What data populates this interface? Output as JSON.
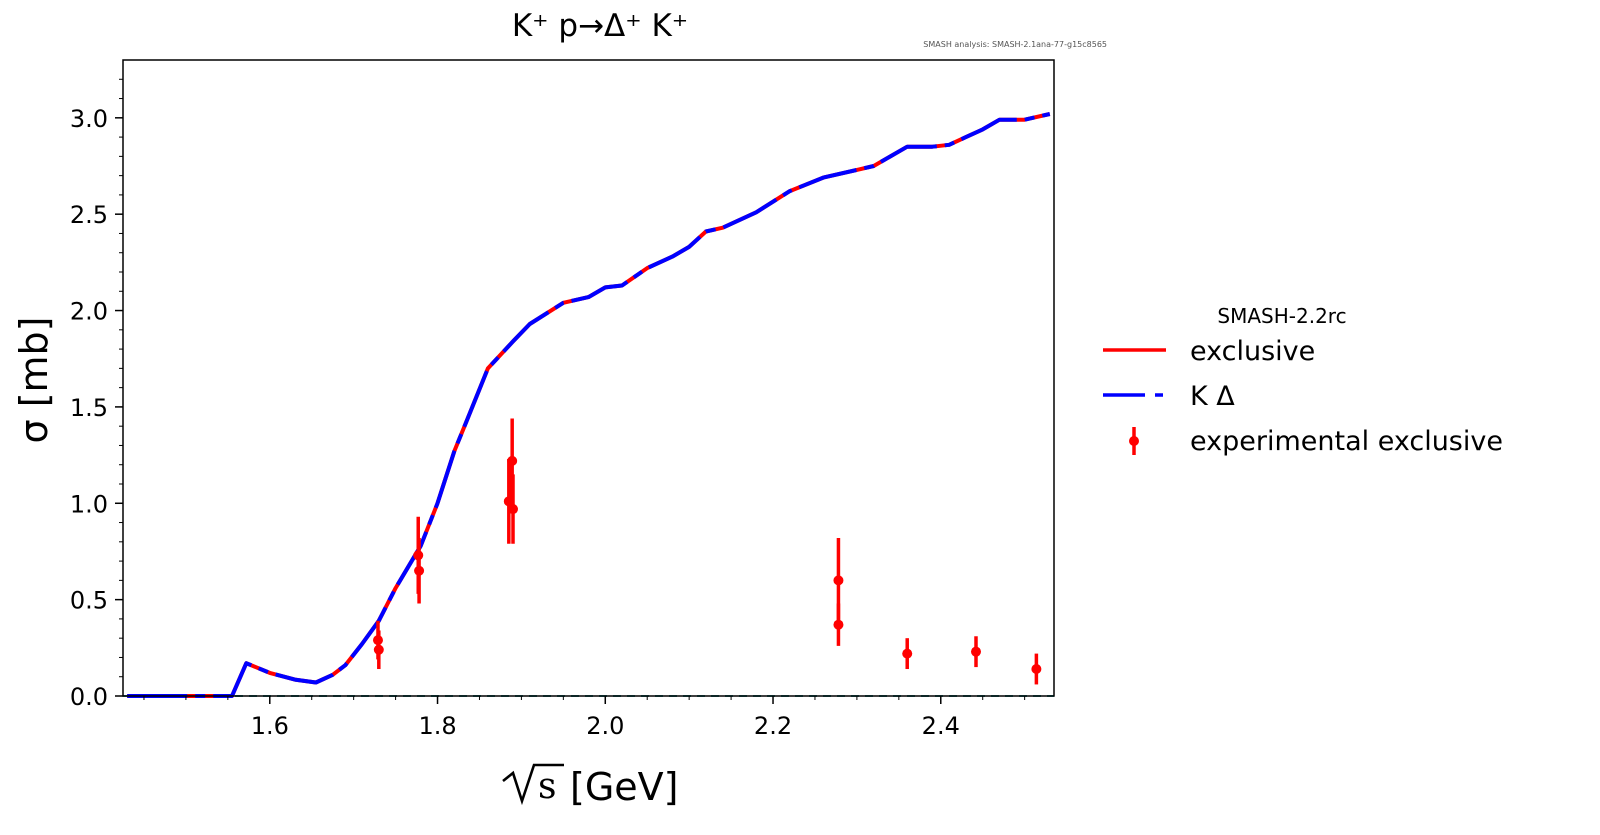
{
  "colors": {
    "exclusive": "#ff0000",
    "k_delta": "#0000ff",
    "experimental": "#ff0000",
    "baseline": "#008080"
  },
  "chart_data": {
    "type": "line",
    "title": "K⁺ p→Δ⁺ K⁺",
    "subtitle": "SMASH analysis: SMASH-2.1ana-77-g15c8565",
    "xlabel": "[GeV]",
    "xlabel_sqrt": "s",
    "ylabel": "σ [mb]",
    "xlim": [
      1.425,
      2.535
    ],
    "ylim": [
      0.0,
      3.3
    ],
    "xticks": [
      "1.6",
      "1.8",
      "2.0",
      "2.2",
      "2.4"
    ],
    "yticks": [
      "0.0",
      "0.5",
      "1.0",
      "1.5",
      "2.0",
      "2.5",
      "3.0"
    ],
    "grid": false,
    "legend": {
      "placement": "right",
      "title": "SMASH-2.2rc",
      "entries": [
        "exclusive",
        "K Δ",
        "experimental exclusive"
      ]
    },
    "series": [
      {
        "name": "exclusive",
        "style": "solid",
        "x": [
          1.43,
          1.5,
          1.555,
          1.572,
          1.6,
          1.63,
          1.655,
          1.675,
          1.69,
          1.71,
          1.73,
          1.75,
          1.78,
          1.8,
          1.82,
          1.835,
          1.86,
          1.89,
          1.91,
          1.95,
          1.98,
          2.0,
          2.02,
          2.05,
          2.08,
          2.1,
          2.12,
          2.14,
          2.18,
          2.22,
          2.26,
          2.3,
          2.32,
          2.34,
          2.36,
          2.39,
          2.41,
          2.43,
          2.45,
          2.47,
          2.5,
          2.53
        ],
        "y": [
          0.0,
          0.0,
          0.0,
          0.17,
          0.12,
          0.085,
          0.07,
          0.11,
          0.16,
          0.27,
          0.39,
          0.56,
          0.78,
          1.0,
          1.27,
          1.43,
          1.7,
          1.84,
          1.93,
          2.04,
          2.07,
          2.12,
          2.13,
          2.22,
          2.28,
          2.33,
          2.41,
          2.43,
          2.51,
          2.62,
          2.69,
          2.73,
          2.75,
          2.8,
          2.85,
          2.85,
          2.86,
          2.9,
          2.94,
          2.99,
          2.99,
          3.02
        ]
      },
      {
        "name": "K Δ",
        "style": "dashed",
        "x": [
          1.43,
          1.5,
          1.555,
          1.572,
          1.6,
          1.63,
          1.655,
          1.675,
          1.69,
          1.71,
          1.73,
          1.75,
          1.78,
          1.8,
          1.82,
          1.835,
          1.86,
          1.89,
          1.91,
          1.95,
          1.98,
          2.0,
          2.02,
          2.05,
          2.08,
          2.1,
          2.12,
          2.14,
          2.18,
          2.22,
          2.26,
          2.3,
          2.32,
          2.34,
          2.36,
          2.39,
          2.41,
          2.43,
          2.45,
          2.47,
          2.5,
          2.53
        ],
        "y": [
          0.0,
          0.0,
          0.0,
          0.17,
          0.12,
          0.085,
          0.07,
          0.11,
          0.16,
          0.27,
          0.39,
          0.56,
          0.78,
          1.0,
          1.27,
          1.43,
          1.7,
          1.84,
          1.93,
          2.04,
          2.07,
          2.12,
          2.13,
          2.22,
          2.28,
          2.33,
          2.41,
          2.43,
          2.51,
          2.62,
          2.69,
          2.73,
          2.75,
          2.8,
          2.85,
          2.85,
          2.86,
          2.9,
          2.94,
          2.99,
          2.99,
          3.02
        ]
      },
      {
        "name": "experimental exclusive",
        "style": "errorbar",
        "points": [
          {
            "x": 1.729,
            "y": 0.29,
            "err": 0.1
          },
          {
            "x": 1.73,
            "y": 0.24,
            "err": 0.1
          },
          {
            "x": 1.777,
            "y": 0.73,
            "err": 0.2
          },
          {
            "x": 1.778,
            "y": 0.65,
            "err": 0.17
          },
          {
            "x": 1.885,
            "y": 1.01,
            "err": 0.22
          },
          {
            "x": 1.889,
            "y": 1.22,
            "err": 0.22
          },
          {
            "x": 1.89,
            "y": 0.97,
            "err": 0.18
          },
          {
            "x": 2.278,
            "y": 0.6,
            "err": 0.22
          },
          {
            "x": 2.278,
            "y": 0.37,
            "err": 0.11
          },
          {
            "x": 2.36,
            "y": 0.22,
            "err": 0.08
          },
          {
            "x": 2.442,
            "y": 0.23,
            "err": 0.08
          },
          {
            "x": 2.514,
            "y": 0.14,
            "err": 0.08
          }
        ]
      }
    ]
  }
}
